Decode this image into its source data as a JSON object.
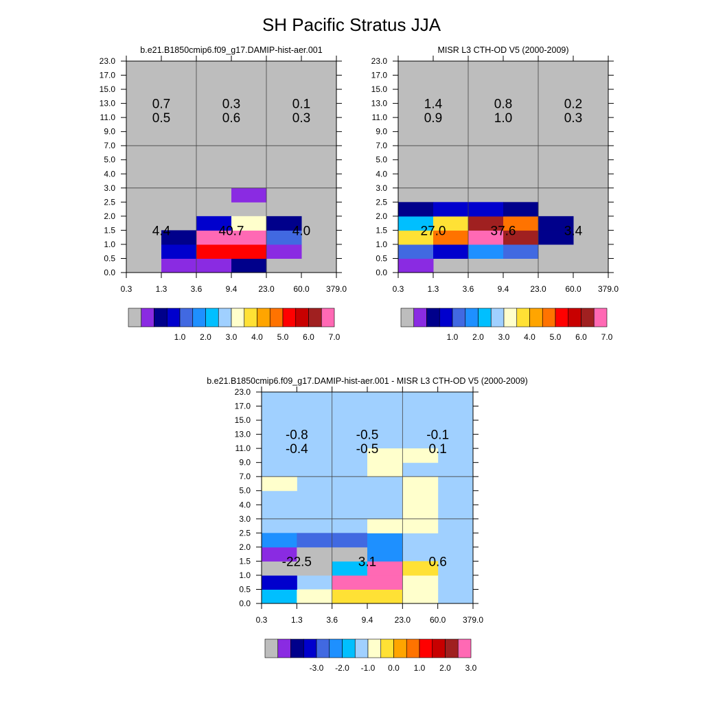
{
  "figure_title": "SH Pacific Stratus JJA",
  "chart_data": [
    {
      "type": "heatmap",
      "title": "b.e21.B1850cmip6.f09_g17.DAMIP-hist-aer.001",
      "x_ticks": [
        "0.3",
        "1.3",
        "3.6",
        "9.4",
        "23.0",
        "60.0",
        "379.0"
      ],
      "y_ticks": [
        "0.0",
        "0.5",
        "1.0",
        "1.5",
        "2.0",
        "2.5",
        "3.0",
        "4.0",
        "5.0",
        "7.0",
        "9.0",
        "11.0",
        "13.0",
        "15.0",
        "17.0",
        "23.0"
      ],
      "default_color": "#BDBDBD",
      "cells": [
        {
          "col": 1,
          "row": 0,
          "color": "#8A2BE2"
        },
        {
          "col": 2,
          "row": 0,
          "color": "#8A2BE2"
        },
        {
          "col": 3,
          "row": 0,
          "color": "#00008B"
        },
        {
          "col": 1,
          "row": 1,
          "color": "#0000CD"
        },
        {
          "col": 2,
          "row": 1,
          "color": "#FF0000"
        },
        {
          "col": 3,
          "row": 1,
          "color": "#FF0000"
        },
        {
          "col": 4,
          "row": 1,
          "color": "#8A2BE2"
        },
        {
          "col": 1,
          "row": 2,
          "color": "#00008B"
        },
        {
          "col": 2,
          "row": 2,
          "color": "#FF69B4"
        },
        {
          "col": 3,
          "row": 2,
          "color": "#FF69B4"
        },
        {
          "col": 4,
          "row": 2,
          "color": "#4169E1"
        },
        {
          "col": 2,
          "row": 3,
          "color": "#0000CD"
        },
        {
          "col": 3,
          "row": 3,
          "color": "#FFFFCC"
        },
        {
          "col": 4,
          "row": 3,
          "color": "#00008B"
        },
        {
          "col": 3,
          "row": 5,
          "color": "#8A2BE2"
        }
      ],
      "box_values": [
        {
          "label": "4.4",
          "col": 0,
          "row": 0
        },
        {
          "label": "40.7",
          "col": 1,
          "row": 0
        },
        {
          "label": "4.0",
          "col": 2,
          "row": 0
        },
        {
          "label": "0.5",
          "col": 0,
          "row": 1
        },
        {
          "label": "0.6",
          "col": 1,
          "row": 1
        },
        {
          "label": "0.3",
          "col": 2,
          "row": 1
        },
        {
          "label": "0.7",
          "col": 0,
          "row": 2
        },
        {
          "label": "0.3",
          "col": 1,
          "row": 2
        },
        {
          "label": "0.1",
          "col": 2,
          "row": 2
        }
      ],
      "colorbar": {
        "colors": [
          "#BDBDBD",
          "#8A2BE2",
          "#00008B",
          "#0000CD",
          "#4169E1",
          "#1E90FF",
          "#00BFFF",
          "#A0D0FF",
          "#FFFFCC",
          "#FFE135",
          "#FFA500",
          "#FF7300",
          "#FF0000",
          "#C80000",
          "#A02020",
          "#FF69B4"
        ],
        "labels": [
          "1.0",
          "2.0",
          "3.0",
          "4.0",
          "5.0",
          "6.0",
          "7.0"
        ]
      }
    },
    {
      "type": "heatmap",
      "title": "MISR L3 CTH-OD V5 (2000-2009)",
      "x_ticks": [
        "0.3",
        "1.3",
        "3.6",
        "9.4",
        "23.0",
        "60.0",
        "379.0"
      ],
      "y_ticks": [
        "0.0",
        "0.5",
        "1.0",
        "1.5",
        "2.0",
        "2.5",
        "3.0",
        "4.0",
        "5.0",
        "7.0",
        "9.0",
        "11.0",
        "13.0",
        "15.0",
        "17.0",
        "23.0"
      ],
      "default_color": "#BDBDBD",
      "cells": [
        {
          "col": 0,
          "row": 0,
          "color": "#8A2BE2"
        },
        {
          "col": 0,
          "row": 1,
          "color": "#4169E1"
        },
        {
          "col": 1,
          "row": 1,
          "color": "#0000CD"
        },
        {
          "col": 2,
          "row": 1,
          "color": "#1E90FF"
        },
        {
          "col": 3,
          "row": 1,
          "color": "#4169E1"
        },
        {
          "col": 0,
          "row": 2,
          "color": "#FFE135"
        },
        {
          "col": 1,
          "row": 2,
          "color": "#FF7300"
        },
        {
          "col": 2,
          "row": 2,
          "color": "#FF69B4"
        },
        {
          "col": 3,
          "row": 2,
          "color": "#A02020"
        },
        {
          "col": 4,
          "row": 2,
          "color": "#00008B"
        },
        {
          "col": 0,
          "row": 3,
          "color": "#00BFFF"
        },
        {
          "col": 1,
          "row": 3,
          "color": "#FFE135"
        },
        {
          "col": 2,
          "row": 3,
          "color": "#A02020"
        },
        {
          "col": 3,
          "row": 3,
          "color": "#FF7300"
        },
        {
          "col": 4,
          "row": 3,
          "color": "#00008B"
        },
        {
          "col": 0,
          "row": 4,
          "color": "#00008B"
        },
        {
          "col": 1,
          "row": 4,
          "color": "#0000CD"
        },
        {
          "col": 2,
          "row": 4,
          "color": "#0000CD"
        },
        {
          "col": 3,
          "row": 4,
          "color": "#00008B"
        }
      ],
      "box_values": [
        {
          "label": "27.0",
          "col": 0,
          "row": 0
        },
        {
          "label": "37.6",
          "col": 1,
          "row": 0
        },
        {
          "label": "3.4",
          "col": 2,
          "row": 0
        },
        {
          "label": "0.9",
          "col": 0,
          "row": 1
        },
        {
          "label": "1.0",
          "col": 1,
          "row": 1
        },
        {
          "label": "0.3",
          "col": 2,
          "row": 1
        },
        {
          "label": "1.4",
          "col": 0,
          "row": 2
        },
        {
          "label": "0.8",
          "col": 1,
          "row": 2
        },
        {
          "label": "0.2",
          "col": 2,
          "row": 2
        }
      ],
      "colorbar": {
        "colors": [
          "#BDBDBD",
          "#8A2BE2",
          "#00008B",
          "#0000CD",
          "#4169E1",
          "#1E90FF",
          "#00BFFF",
          "#A0D0FF",
          "#FFFFCC",
          "#FFE135",
          "#FFA500",
          "#FF7300",
          "#FF0000",
          "#C80000",
          "#A02020",
          "#FF69B4"
        ],
        "labels": [
          "1.0",
          "2.0",
          "3.0",
          "4.0",
          "5.0",
          "6.0",
          "7.0"
        ]
      }
    },
    {
      "type": "heatmap",
      "title": "b.e21.B1850cmip6.f09_g17.DAMIP-hist-aer.001 - MISR L3 CTH-OD V5 (2000-2009)",
      "x_ticks": [
        "0.3",
        "1.3",
        "3.6",
        "9.4",
        "23.0",
        "60.0",
        "379.0"
      ],
      "y_ticks": [
        "0.0",
        "0.5",
        "1.0",
        "1.5",
        "2.0",
        "2.5",
        "3.0",
        "4.0",
        "5.0",
        "7.0",
        "9.0",
        "11.0",
        "13.0",
        "15.0",
        "17.0",
        "23.0"
      ],
      "default_color": "#A0D0FF",
      "cells": [
        {
          "col": 0,
          "row": 0,
          "color": "#00BFFF"
        },
        {
          "col": 1,
          "row": 0,
          "color": "#FFFFCC"
        },
        {
          "col": 2,
          "row": 0,
          "color": "#FFE135"
        },
        {
          "col": 3,
          "row": 0,
          "color": "#FFE135"
        },
        {
          "col": 4,
          "row": 0,
          "color": "#FFFFCC"
        },
        {
          "col": 0,
          "row": 1,
          "color": "#0000CD"
        },
        {
          "col": 2,
          "row": 1,
          "color": "#FF69B4"
        },
        {
          "col": 3,
          "row": 1,
          "color": "#FF69B4"
        },
        {
          "col": 4,
          "row": 1,
          "color": "#FFFFCC"
        },
        {
          "col": 0,
          "row": 2,
          "color": "#BDBDBD"
        },
        {
          "col": 1,
          "row": 2,
          "color": "#BDBDBD"
        },
        {
          "col": 2,
          "row": 2,
          "color": "#00BFFF"
        },
        {
          "col": 3,
          "row": 2,
          "color": "#FF69B4"
        },
        {
          "col": 4,
          "row": 2,
          "color": "#FFE135"
        },
        {
          "col": 0,
          "row": 3,
          "color": "#8A2BE2"
        },
        {
          "col": 1,
          "row": 3,
          "color": "#BDBDBD"
        },
        {
          "col": 2,
          "row": 3,
          "color": "#BDBDBD"
        },
        {
          "col": 3,
          "row": 3,
          "color": "#1E90FF"
        },
        {
          "col": 0,
          "row": 4,
          "color": "#1E90FF"
        },
        {
          "col": 1,
          "row": 4,
          "color": "#4169E1"
        },
        {
          "col": 2,
          "row": 4,
          "color": "#4169E1"
        },
        {
          "col": 3,
          "row": 4,
          "color": "#1E90FF"
        },
        {
          "col": 3,
          "row": 5,
          "color": "#FFFFCC"
        },
        {
          "col": 4,
          "row": 5,
          "color": "#FFFFCC"
        },
        {
          "col": 4,
          "row": 6,
          "color": "#FFFFCC"
        },
        {
          "col": 4,
          "row": 7,
          "color": "#FFFFCC"
        },
        {
          "col": 0,
          "row": 8,
          "color": "#FFFFCC"
        },
        {
          "col": 4,
          "row": 8,
          "color": "#FFFFCC"
        },
        {
          "col": 3,
          "row": 9,
          "color": "#FFFFCC"
        },
        {
          "col": 3,
          "row": 10,
          "color": "#FFFFCC"
        },
        {
          "col": 4,
          "row": 10,
          "color": "#FFFFCC"
        }
      ],
      "box_values": [
        {
          "label": "-22.5",
          "col": 0,
          "row": 0
        },
        {
          "label": "3.1",
          "col": 1,
          "row": 0
        },
        {
          "label": "0.6",
          "col": 2,
          "row": 0
        },
        {
          "label": "-0.4",
          "col": 0,
          "row": 1
        },
        {
          "label": "-0.5",
          "col": 1,
          "row": 1
        },
        {
          "label": "0.1",
          "col": 2,
          "row": 1
        },
        {
          "label": "-0.8",
          "col": 0,
          "row": 2
        },
        {
          "label": "-0.5",
          "col": 1,
          "row": 2
        },
        {
          "label": "-0.1",
          "col": 2,
          "row": 2
        }
      ],
      "colorbar": {
        "colors": [
          "#BDBDBD",
          "#8A2BE2",
          "#00008B",
          "#0000CD",
          "#4169E1",
          "#1E90FF",
          "#00BFFF",
          "#A0D0FF",
          "#FFFFCC",
          "#FFE135",
          "#FFA500",
          "#FF7300",
          "#FF0000",
          "#C80000",
          "#A02020",
          "#FF69B4"
        ],
        "labels": [
          "-3.0",
          "-2.0",
          "-1.0",
          "0.0",
          "1.0",
          "2.0",
          "3.0"
        ]
      }
    }
  ]
}
